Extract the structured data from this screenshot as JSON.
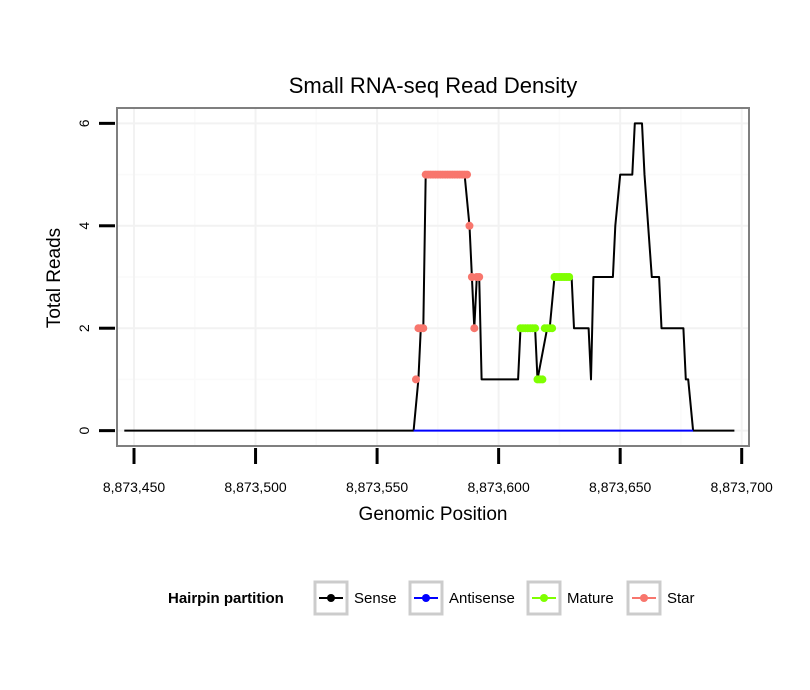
{
  "chart_data": {
    "type": "line",
    "title": "Small RNA-seq Read Density",
    "xlabel": "Genomic Position",
    "ylabel": "Total Reads",
    "xlim": [
      8873443,
      8873703
    ],
    "ylim": [
      -0.3,
      6.3
    ],
    "x_ticks": [
      8873450,
      8873500,
      8873550,
      8873600,
      8873650,
      8873700
    ],
    "x_tick_labels": [
      "8,873,450",
      "8,873,500",
      "8,873,550",
      "8,873,600",
      "8,873,650",
      "8,873,700"
    ],
    "y_ticks": [
      0,
      2,
      4,
      6
    ],
    "y_tick_labels": [
      "0",
      "2",
      "4",
      "6"
    ],
    "grid": true,
    "legend": {
      "title": "Hairpin partition",
      "position": "bottom",
      "entries": [
        "Sense",
        "Antisense",
        "Mature",
        "Star"
      ]
    },
    "series": [
      {
        "name": "Sense",
        "color": "#000000",
        "x": [
          8873446,
          8873565,
          8873567,
          8873568,
          8873569,
          8873570,
          8873586,
          8873588,
          8873590,
          8873591,
          8873592,
          8873593,
          8873594,
          8873608,
          8873609,
          8873615,
          8873616,
          8873620,
          8873621,
          8873623,
          8873624,
          8873630,
          8873631,
          8873637,
          8873638,
          8873639,
          8873647,
          8873648,
          8873650,
          8873651,
          8873655,
          8873656,
          8873659,
          8873660,
          8873663,
          8873666,
          8873667,
          8873676,
          8873677,
          8873678,
          8873680,
          8873697
        ],
        "y": [
          0,
          0,
          1,
          2,
          2,
          5,
          5,
          4,
          2,
          3,
          3,
          1,
          1,
          1,
          2,
          2,
          1,
          2,
          2,
          3,
          3,
          3,
          2,
          2,
          1,
          3,
          3,
          4,
          5,
          5,
          5,
          6,
          6,
          5,
          3,
          3,
          2,
          2,
          1,
          1,
          0,
          0
        ]
      },
      {
        "name": "Antisense",
        "color": "#0000ff",
        "x": [
          8873565,
          8873680
        ],
        "y": [
          0,
          0
        ]
      },
      {
        "name": "Mature",
        "color": "#7fff00",
        "points": [
          [
            8873609,
            2
          ],
          [
            8873610,
            2
          ],
          [
            8873611,
            2
          ],
          [
            8873612,
            2
          ],
          [
            8873613,
            2
          ],
          [
            8873614,
            2
          ],
          [
            8873615,
            2
          ],
          [
            8873616,
            1
          ],
          [
            8873617,
            1
          ],
          [
            8873618,
            1
          ],
          [
            8873619,
            2
          ],
          [
            8873620,
            2
          ],
          [
            8873621,
            2
          ],
          [
            8873622,
            2
          ],
          [
            8873623,
            3
          ],
          [
            8873624,
            3
          ],
          [
            8873625,
            3
          ],
          [
            8873626,
            3
          ],
          [
            8873627,
            3
          ],
          [
            8873628,
            3
          ],
          [
            8873629,
            3
          ]
        ]
      },
      {
        "name": "Star",
        "color": "#f8766d",
        "points": [
          [
            8873566,
            1
          ],
          [
            8873567,
            2
          ],
          [
            8873568,
            2
          ],
          [
            8873569,
            2
          ],
          [
            8873570,
            5
          ],
          [
            8873571,
            5
          ],
          [
            8873572,
            5
          ],
          [
            8873573,
            5
          ],
          [
            8873574,
            5
          ],
          [
            8873575,
            5
          ],
          [
            8873576,
            5
          ],
          [
            8873577,
            5
          ],
          [
            8873578,
            5
          ],
          [
            8873579,
            5
          ],
          [
            8873580,
            5
          ],
          [
            8873581,
            5
          ],
          [
            8873582,
            5
          ],
          [
            8873583,
            5
          ],
          [
            8873584,
            5
          ],
          [
            8873585,
            5
          ],
          [
            8873586,
            5
          ],
          [
            8873587,
            5
          ],
          [
            8873588,
            4
          ],
          [
            8873589,
            3
          ],
          [
            8873590,
            2
          ],
          [
            8873591,
            3
          ],
          [
            8873592,
            3
          ]
        ]
      }
    ]
  }
}
